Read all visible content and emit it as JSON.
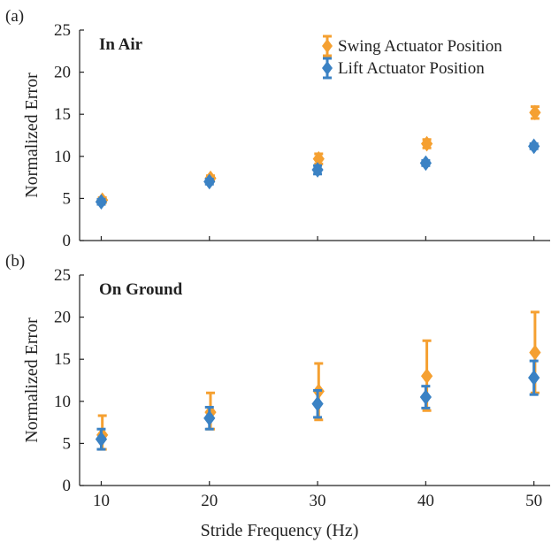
{
  "figure": {
    "xlabel": "Stride Frequency (Hz)"
  },
  "legend": {
    "swing_label": "Swing Actuator Position",
    "lift_label": "Lift Actuator Position"
  },
  "colors": {
    "swing": "#F5A031",
    "lift": "#3B82C4"
  },
  "chart_data": [
    {
      "type": "scatter",
      "panel_label": "(a)",
      "title": "In Air",
      "xlabel": "",
      "ylabel": "Normalized Error",
      "x": [
        10,
        20,
        30,
        40,
        50
      ],
      "xticks": [
        "10",
        "20",
        "30",
        "40",
        "50"
      ],
      "yticks": [
        "0",
        "5",
        "10",
        "15",
        "20",
        "25"
      ],
      "ylim": [
        0,
        25
      ],
      "xlim": [
        8,
        51.5
      ],
      "legend_position": "top-right",
      "series": [
        {
          "name": "Swing Actuator Position",
          "key": "swing",
          "x": [
            10.1,
            20.1,
            30.1,
            40.1,
            50.1
          ],
          "values": [
            4.8,
            7.4,
            9.7,
            11.5,
            15.2
          ],
          "err_lo": [
            0.3,
            0.3,
            0.6,
            0.5,
            0.7
          ],
          "err_hi": [
            0.3,
            0.3,
            0.6,
            0.5,
            0.7
          ]
        },
        {
          "name": "Lift Actuator Position",
          "key": "lift",
          "x": [
            10,
            20,
            30,
            40,
            50
          ],
          "values": [
            4.6,
            7.0,
            8.4,
            9.2,
            11.2
          ],
          "err_lo": [
            0.3,
            0.3,
            0.5,
            0.3,
            0.3
          ],
          "err_hi": [
            0.3,
            0.3,
            0.5,
            0.3,
            0.3
          ]
        }
      ]
    },
    {
      "type": "scatter",
      "panel_label": "(b)",
      "title": "On Ground",
      "xlabel": "Stride Frequency (Hz)",
      "ylabel": "Normalized Error",
      "x": [
        10,
        20,
        30,
        40,
        50
      ],
      "xticks": [
        "10",
        "20",
        "30",
        "40",
        "50"
      ],
      "yticks": [
        "0",
        "5",
        "10",
        "15",
        "20",
        "25"
      ],
      "ylim": [
        0,
        25
      ],
      "xlim": [
        8,
        51.5
      ],
      "series": [
        {
          "name": "Swing Actuator Position",
          "key": "swing",
          "x": [
            10.1,
            20.1,
            30.1,
            40.1,
            50.1
          ],
          "values": [
            6.0,
            8.7,
            11.2,
            13.0,
            15.8
          ],
          "err_lo": [
            1.7,
            2.0,
            3.4,
            4.1,
            4.8
          ],
          "err_hi": [
            2.3,
            2.3,
            3.3,
            4.2,
            4.8
          ]
        },
        {
          "name": "Lift Actuator Position",
          "key": "lift",
          "x": [
            10,
            20,
            30,
            40,
            50
          ],
          "values": [
            5.5,
            8.0,
            9.7,
            10.5,
            12.8
          ],
          "err_lo": [
            1.2,
            1.3,
            1.6,
            1.3,
            2.0
          ],
          "err_hi": [
            1.2,
            1.3,
            1.6,
            1.3,
            2.0
          ]
        }
      ]
    }
  ]
}
